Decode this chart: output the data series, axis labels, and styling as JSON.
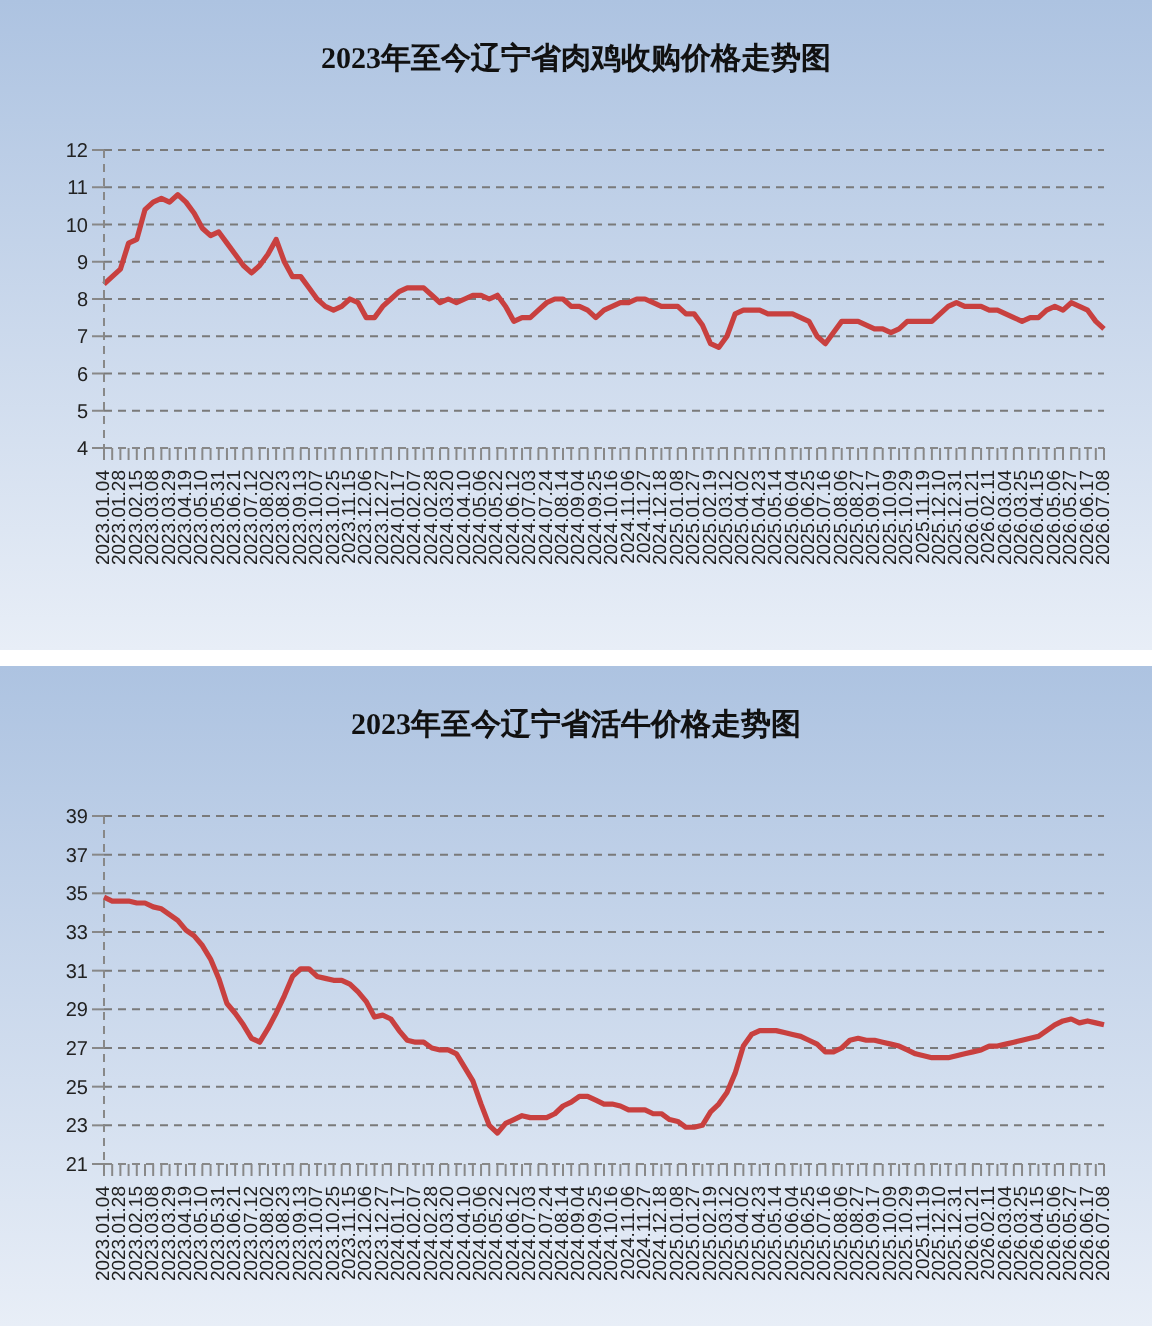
{
  "chart_data": [
    {
      "type": "line",
      "title": "2023年至今辽宁省肉鸡收购价格走势图",
      "categories": [
        "2023.01.04",
        null,
        "2023.01.28",
        null,
        "2023.02.15",
        null,
        "2023.03.08",
        null,
        "2023.03.29",
        null,
        "2023.04.19",
        null,
        "2023.05.10",
        null,
        "2023.05.31",
        null,
        "2023.06.21",
        null,
        "2023.07.12",
        null,
        "2023.08.02",
        null,
        "2023.08.23",
        null,
        "2023.09.13",
        null,
        "2023.10.07",
        null,
        "2023.10.25",
        null,
        "2023.11.15",
        null,
        "2023.12.06",
        null,
        "2023.12.27",
        null,
        "2024.01.17",
        null,
        "2024.02.07",
        null,
        "2024.02.28",
        null,
        "2024.03.20",
        null,
        "2024.04.10",
        null,
        "2024.05.06",
        null,
        "2024.05.22",
        null,
        "2024.06.12",
        null,
        "2024.07.03",
        null,
        "2024.07.24",
        null,
        "2024.08.14",
        null,
        "2024.09.04",
        null,
        "2024.09.25",
        null,
        "2024.10.16",
        null,
        "2024.11.06",
        null,
        "2024.11.27",
        null,
        "2024.12.18",
        null,
        "2025.01.08",
        null,
        "2025.01.27",
        null,
        "2025.02.19",
        null,
        "2025.03.12",
        null,
        "2025.04.02",
        null,
        "2025.04.23",
        null,
        "2025.05.14",
        null,
        "2025.06.04",
        null,
        "2025.06.25",
        null,
        "2025.07.16",
        null,
        "2025.08.06",
        null,
        "2025.08.27",
        null,
        "2025.09.17",
        null,
        "2025.10.09",
        null,
        "2025.10.29",
        null,
        "2025.11.19",
        null,
        "2025.12.10",
        null,
        "2025.12.31",
        null,
        "2026.01.21",
        null,
        "2026.02.11",
        null,
        "2026.03.04",
        null,
        "2026.03.25",
        null,
        "2026.04.15",
        null,
        "2026.05.06",
        null,
        "2026.05.27",
        null,
        "2026.06.17",
        null,
        "2026.07.08"
      ],
      "series": [
        {
          "color": "#c8403f",
          "values": [
            8.4,
            8.6,
            8.8,
            9.5,
            9.6,
            10.4,
            10.6,
            10.7,
            10.6,
            10.8,
            10.6,
            10.3,
            9.9,
            9.7,
            9.8,
            9.5,
            9.2,
            8.9,
            8.7,
            8.9,
            9.2,
            9.6,
            9.0,
            8.6,
            8.6,
            8.3,
            8.0,
            7.8,
            7.7,
            7.8,
            8.0,
            7.9,
            7.5,
            7.5,
            7.8,
            8.0,
            8.2,
            8.3,
            8.3,
            8.3,
            8.1,
            7.9,
            8.0,
            7.9,
            8.0,
            8.1,
            8.1,
            8.0,
            8.1,
            7.8,
            7.4,
            7.5,
            7.5,
            7.7,
            7.9,
            8.0,
            8.0,
            7.8,
            7.8,
            7.7,
            7.5,
            7.7,
            7.8,
            7.9,
            7.9,
            8.0,
            8.0,
            7.9,
            7.8,
            7.8,
            7.8,
            7.6,
            7.6,
            7.3,
            6.8,
            6.7,
            7.0,
            7.6,
            7.7,
            7.7,
            7.7,
            7.6,
            7.6,
            7.6,
            7.6,
            7.5,
            7.4,
            7.0,
            6.8,
            7.1,
            7.4,
            7.4,
            7.4,
            7.3,
            7.2,
            7.2,
            7.1,
            7.2,
            7.4,
            7.4,
            7.4,
            7.4,
            7.6,
            7.8,
            7.9,
            7.8,
            7.8,
            7.8,
            7.7,
            7.7,
            7.6,
            7.5,
            7.4,
            7.5,
            7.5,
            7.7,
            7.8,
            7.7,
            7.9,
            7.8,
            7.7,
            7.4,
            7.2
          ]
        }
      ],
      "ylim": [
        4,
        12
      ],
      "yticks": [
        4,
        5,
        6,
        7,
        8,
        9,
        10,
        11,
        12
      ],
      "grid": "y",
      "marker": "none",
      "line_style": "solid"
    },
    {
      "type": "line",
      "title": "2023年至今辽宁省活牛价格走势图",
      "categories": [
        "2023.01.04",
        null,
        "2023.01.28",
        null,
        "2023.02.15",
        null,
        "2023.03.08",
        null,
        "2023.03.29",
        null,
        "2023.04.19",
        null,
        "2023.05.10",
        null,
        "2023.05.31",
        null,
        "2023.06.21",
        null,
        "2023.07.12",
        null,
        "2023.08.02",
        null,
        "2023.08.23",
        null,
        "2023.09.13",
        null,
        "2023.10.07",
        null,
        "2023.10.25",
        null,
        "2023.11.15",
        null,
        "2023.12.06",
        null,
        "2023.12.27",
        null,
        "2024.01.17",
        null,
        "2024.02.07",
        null,
        "2024.02.28",
        null,
        "2024.03.20",
        null,
        "2024.04.10",
        null,
        "2024.05.06",
        null,
        "2024.05.22",
        null,
        "2024.06.12",
        null,
        "2024.07.03",
        null,
        "2024.07.24",
        null,
        "2024.08.14",
        null,
        "2024.09.04",
        null,
        "2024.09.25",
        null,
        "2024.10.16",
        null,
        "2024.11.06",
        null,
        "2024.11.27",
        null,
        "2024.12.18",
        null,
        "2025.01.08",
        null,
        "2025.01.27",
        null,
        "2025.02.19",
        null,
        "2025.03.12",
        null,
        "2025.04.02",
        null,
        "2025.04.23",
        null,
        "2025.05.14",
        null,
        "2025.06.04",
        null,
        "2025.06.25",
        null,
        "2025.07.16",
        null,
        "2025.08.06",
        null,
        "2025.08.27",
        null,
        "2025.09.17",
        null,
        "2025.10.09",
        null,
        "2025.10.29",
        null,
        "2025.11.19",
        null,
        "2025.12.10",
        null,
        "2025.12.31",
        null,
        "2026.01.21",
        null,
        "2026.02.11",
        null,
        "2026.03.04",
        null,
        "2026.03.25",
        null,
        "2026.04.15",
        null,
        "2026.05.06",
        null,
        "2026.05.27",
        null,
        "2026.06.17",
        null,
        "2026.07.08"
      ],
      "series": [
        {
          "color": "#c8403f",
          "values": [
            34.8,
            34.6,
            34.6,
            34.6,
            34.5,
            34.5,
            34.3,
            34.2,
            33.9,
            33.6,
            33.1,
            32.8,
            32.3,
            31.6,
            30.6,
            29.3,
            28.8,
            28.2,
            27.5,
            27.3,
            28.0,
            28.8,
            29.7,
            30.7,
            31.1,
            31.1,
            30.7,
            30.6,
            30.5,
            30.5,
            30.3,
            29.9,
            29.4,
            28.6,
            28.7,
            28.5,
            27.9,
            27.4,
            27.3,
            27.3,
            27.0,
            26.9,
            26.9,
            26.7,
            26.0,
            25.3,
            24.1,
            23.0,
            22.6,
            23.1,
            23.3,
            23.5,
            23.4,
            23.4,
            23.4,
            23.6,
            24.0,
            24.2,
            24.5,
            24.5,
            24.3,
            24.1,
            24.1,
            24.0,
            23.8,
            23.8,
            23.8,
            23.6,
            23.6,
            23.3,
            23.2,
            22.9,
            22.9,
            23.0,
            23.7,
            24.1,
            24.7,
            25.7,
            27.1,
            27.7,
            27.9,
            27.9,
            27.9,
            27.8,
            27.7,
            27.6,
            27.4,
            27.2,
            26.8,
            26.8,
            27.0,
            27.4,
            27.5,
            27.4,
            27.4,
            27.3,
            27.2,
            27.1,
            26.9,
            26.7,
            26.6,
            26.5,
            26.5,
            26.5,
            26.6,
            26.7,
            26.8,
            26.9,
            27.1,
            27.1,
            27.2,
            27.3,
            27.4,
            27.5,
            27.6,
            27.9,
            28.2,
            28.4,
            28.5,
            28.3,
            28.4,
            28.3,
            28.2
          ]
        }
      ],
      "ylim": [
        21,
        39
      ],
      "yticks": [
        21,
        23,
        25,
        27,
        29,
        31,
        33,
        35,
        37,
        39
      ],
      "grid": "y",
      "marker": "none",
      "line_style": "solid"
    }
  ]
}
